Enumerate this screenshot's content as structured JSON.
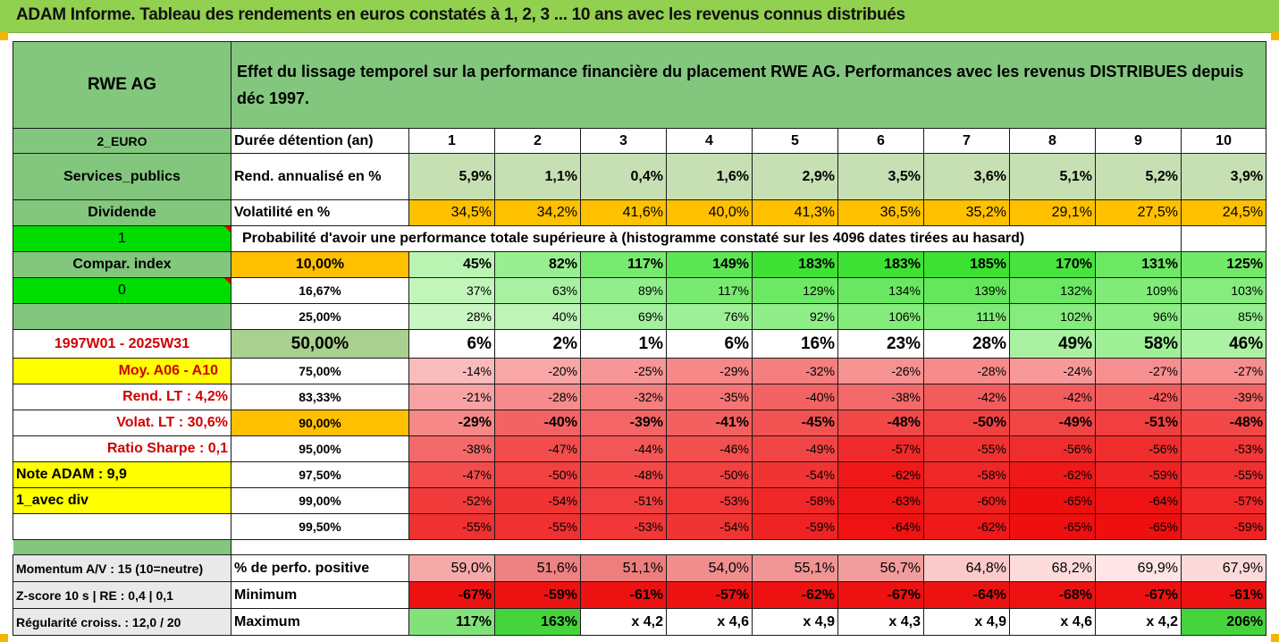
{
  "title": "ADAM Informe. Tableau des rendements en euros constatés à 1, 2, 3 ... 10 ans avec les revenus connus distribués",
  "header": {
    "asset": "RWE AG",
    "description": "Effet du lissage temporel sur la performance financière du placement RWE AG. Performances avec les revenus DISTRIBUES depuis déc 1997."
  },
  "left": {
    "currency": "2_EURO",
    "sector": "Services_publics",
    "dividend": "Dividende",
    "flag1": "1",
    "compar": "Compar. index",
    "flag0": "0",
    "period": "1997W01 - 2025W31",
    "moy": "Moy. A06 - A10",
    "rend_lt": "Rend. LT :   4,2%",
    "volat_lt": "Volat. LT :   30,6%",
    "sharpe": "Ratio Sharpe :   0,1",
    "note": "Note ADAM : 9,9",
    "avec_div": "1_avec div",
    "momentum": "Momentum A/V : 15 (10=neutre)",
    "zscore": "Z-score 10 s  | RE : 0,4 | 0,1",
    "regularite": "Régularité croiss. : 12,0 / 20"
  },
  "labels": {
    "duree": "Durée détention (an)",
    "rend": "Rend. annualisé en %",
    "vol": "Volatilité en %",
    "proba": "Probabilité d'avoir une performance totale supérieure à (histogramme constaté sur les 4096 dates tirées au hasard)",
    "perf_pos": "% de perfo. positive",
    "minimum": "Minimum",
    "maximum": "Maximum"
  },
  "years": [
    "1",
    "2",
    "3",
    "4",
    "5",
    "6",
    "7",
    "8",
    "9",
    "10"
  ],
  "rend": [
    "5,9%",
    "1,1%",
    "0,4%",
    "1,6%",
    "2,9%",
    "3,5%",
    "3,6%",
    "5,1%",
    "5,2%",
    "3,9%"
  ],
  "vol": [
    "34,5%",
    "34,2%",
    "41,6%",
    "40,0%",
    "41,3%",
    "36,5%",
    "35,2%",
    "29,1%",
    "27,5%",
    "24,5%"
  ],
  "quantiles": [
    {
      "p": "10,00%",
      "v": [
        "45%",
        "82%",
        "117%",
        "149%",
        "183%",
        "183%",
        "185%",
        "170%",
        "131%",
        "125%"
      ]
    },
    {
      "p": "16,67%",
      "v": [
        "37%",
        "63%",
        "89%",
        "117%",
        "129%",
        "134%",
        "139%",
        "132%",
        "109%",
        "103%"
      ]
    },
    {
      "p": "25,00%",
      "v": [
        "28%",
        "40%",
        "69%",
        "76%",
        "92%",
        "106%",
        "111%",
        "102%",
        "96%",
        "85%"
      ]
    },
    {
      "p": "50,00%",
      "v": [
        "6%",
        "2%",
        "1%",
        "6%",
        "16%",
        "23%",
        "28%",
        "49%",
        "58%",
        "46%"
      ]
    },
    {
      "p": "75,00%",
      "v": [
        "-14%",
        "-20%",
        "-25%",
        "-29%",
        "-32%",
        "-26%",
        "-28%",
        "-24%",
        "-27%",
        "-27%"
      ]
    },
    {
      "p": "83,33%",
      "v": [
        "-21%",
        "-28%",
        "-32%",
        "-35%",
        "-40%",
        "-38%",
        "-42%",
        "-42%",
        "-42%",
        "-39%"
      ]
    },
    {
      "p": "90,00%",
      "v": [
        "-29%",
        "-40%",
        "-39%",
        "-41%",
        "-45%",
        "-48%",
        "-50%",
        "-49%",
        "-51%",
        "-48%"
      ]
    },
    {
      "p": "95,00%",
      "v": [
        "-38%",
        "-47%",
        "-44%",
        "-46%",
        "-49%",
        "-57%",
        "-55%",
        "-56%",
        "-56%",
        "-53%"
      ]
    },
    {
      "p": "97,50%",
      "v": [
        "-47%",
        "-50%",
        "-48%",
        "-50%",
        "-54%",
        "-62%",
        "-58%",
        "-62%",
        "-59%",
        "-55%"
      ]
    },
    {
      "p": "99,00%",
      "v": [
        "-52%",
        "-54%",
        "-51%",
        "-53%",
        "-58%",
        "-63%",
        "-60%",
        "-65%",
        "-64%",
        "-57%"
      ]
    },
    {
      "p": "99,50%",
      "v": [
        "-55%",
        "-55%",
        "-53%",
        "-54%",
        "-59%",
        "-64%",
        "-62%",
        "-65%",
        "-65%",
        "-59%"
      ]
    }
  ],
  "perf_pos": [
    "59,0%",
    "51,6%",
    "51,1%",
    "54,0%",
    "55,1%",
    "56,7%",
    "64,8%",
    "68,2%",
    "69,9%",
    "67,9%"
  ],
  "minimum": [
    "-67%",
    "-59%",
    "-61%",
    "-57%",
    "-62%",
    "-67%",
    "-64%",
    "-68%",
    "-67%",
    "-61%"
  ],
  "maximum": [
    "117%",
    "163%",
    "x 4,2",
    "x 4,6",
    "x 4,9",
    "x 4,3",
    "x 4,9",
    "x 4,6",
    "x 4,2",
    "206%"
  ],
  "colors": {
    "title_bg": "#92d050",
    "header_green": "#82c77d",
    "bright_green": "#00dd00",
    "yellow": "#ffff00",
    "orange": "#ffc000",
    "rend_bg": "#c6e0b4",
    "red_text": "#d00000"
  }
}
